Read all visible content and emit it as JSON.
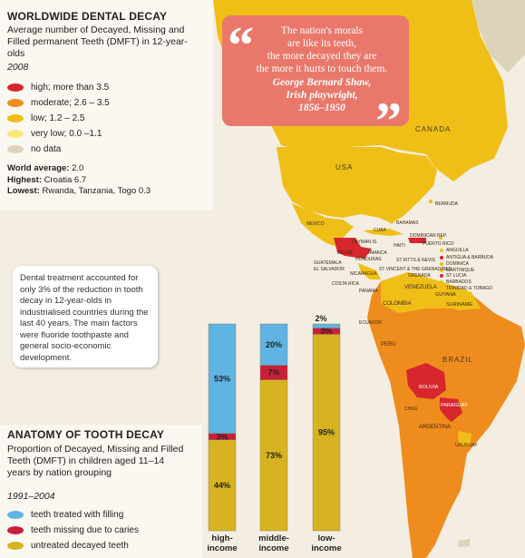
{
  "legend_map": {
    "title": "WORLDWIDE DENTAL DECAY",
    "subtitle": "Average number of Decayed, Missing and Filled permanent Teeth (DMFT) in 12-year-olds",
    "year": "2008",
    "items": [
      {
        "label": "high; more than 3.5",
        "color": "#d7262d"
      },
      {
        "label": "moderate; 2.6 – 3.5",
        "color": "#ef8c1e"
      },
      {
        "label": "low; 1.2 – 2.5",
        "color": "#efbf18"
      },
      {
        "label": "very low; 0.0 –1.1",
        "color": "#f6e77a"
      },
      {
        "label": "no data",
        "color": "#ddd3b9"
      }
    ],
    "world_average_label": "World average:",
    "world_average_value": "2.0",
    "highest_label": "Highest:",
    "highest_value": "Croatia 6.7",
    "lowest_label": "Lowest:",
    "lowest_value": "Rwanda, Tanzania, Togo 0.3"
  },
  "note": "Dental treatment accounted for only 3% of the reduction in tooth decay in 12-year-olds in industrialised countries during the last 40 years. The main factors were fluoride toothpaste and general socio-economic development.",
  "quote": {
    "text_lines": [
      "The nation's morals",
      "are like its teeth,",
      "the more decayed they are",
      "the more it hurts to touch them."
    ],
    "author": "George Bernard Shaw,",
    "role": "Irish playwright,",
    "years": "1856–1950",
    "open_mark": "“",
    "close_mark": "”"
  },
  "map_labels": {
    "canada": "CANADA",
    "usa": "USA",
    "mexico": "MEXICO",
    "bermuda": "BERMUDA",
    "bahamas": "BAHAMAS",
    "cuba": "CUBA",
    "cayman": "CAYMAN IS.",
    "haiti": "HAITI",
    "dominican": "DOMINICAN REP.",
    "puerto": "PUERTO RICO",
    "jamaica": "JAMAICA",
    "belize": "BELIZE",
    "honduras": "HONDURAS",
    "guatemala": "GUATEMALA",
    "elsalvador": "EL SALVADOR",
    "nicaragua": "NICARAGUA",
    "costarica": "COSTA RICA",
    "panama": "PANAMA",
    "anguilla": "ANGUILLA",
    "antigua": "ANTIGUA & BARBUDA",
    "dominica": "DOMINICA",
    "stkitts": "ST KITTS & NEVIS",
    "martinique": "MARTINIQUE",
    "stlucia": "ST LUCIA",
    "stvincent": "ST VINCENT & THE GRENADINES",
    "barbados": "BARBADOS",
    "grenada": "GRENADA",
    "trinidad": "TRINIDAD & TOBAGO",
    "venezuela": "VENEZUELA",
    "guyana": "GUYANA",
    "suriname": "SURINAME",
    "colombia": "COLOMBIA",
    "ecuador": "ECUADOR",
    "peru": "PERU",
    "brazil": "BRAZIL",
    "bolivia": "BOLIVIA",
    "paraguay": "PARAGUAY",
    "chile": "CHILE",
    "argentina": "ARGENTINA",
    "uruguay": "URUGUAY"
  },
  "anatomy": {
    "title": "ANATOMY OF TOOTH DECAY",
    "subtitle": "Proportion of Decayed, Missing and Filled Teeth (DMFT) in children aged 11–14 years by nation grouping",
    "years": "1991–2004",
    "legend": [
      {
        "label": "teeth treated with filling",
        "color": "#5fb4e3"
      },
      {
        "label": "teeth missing due to caries",
        "color": "#c8203a"
      },
      {
        "label": "untreated decayed teeth",
        "color": "#d7b321"
      }
    ]
  },
  "chart_data": {
    "type": "bar",
    "stacked": true,
    "categories": [
      "high-income",
      "middle-income",
      "low-income"
    ],
    "category_lines": [
      [
        "high-",
        "income"
      ],
      [
        "middle-",
        "income"
      ],
      [
        "low-",
        "income"
      ]
    ],
    "series": [
      {
        "name": "untreated decayed teeth",
        "values": [
          44,
          73,
          95
        ],
        "labels": [
          "44%",
          "73%",
          "95%"
        ],
        "color": "#d7b321"
      },
      {
        "name": "teeth missing due to caries",
        "values": [
          3,
          7,
          3
        ],
        "labels": [
          "3%",
          "7%",
          "3%"
        ],
        "color": "#c8203a"
      },
      {
        "name": "teeth treated with filling",
        "values": [
          53,
          20,
          2
        ],
        "labels": [
          "53%",
          "20%",
          "2%"
        ],
        "color": "#5fb4e3"
      }
    ],
    "ylim": [
      0,
      100
    ]
  }
}
